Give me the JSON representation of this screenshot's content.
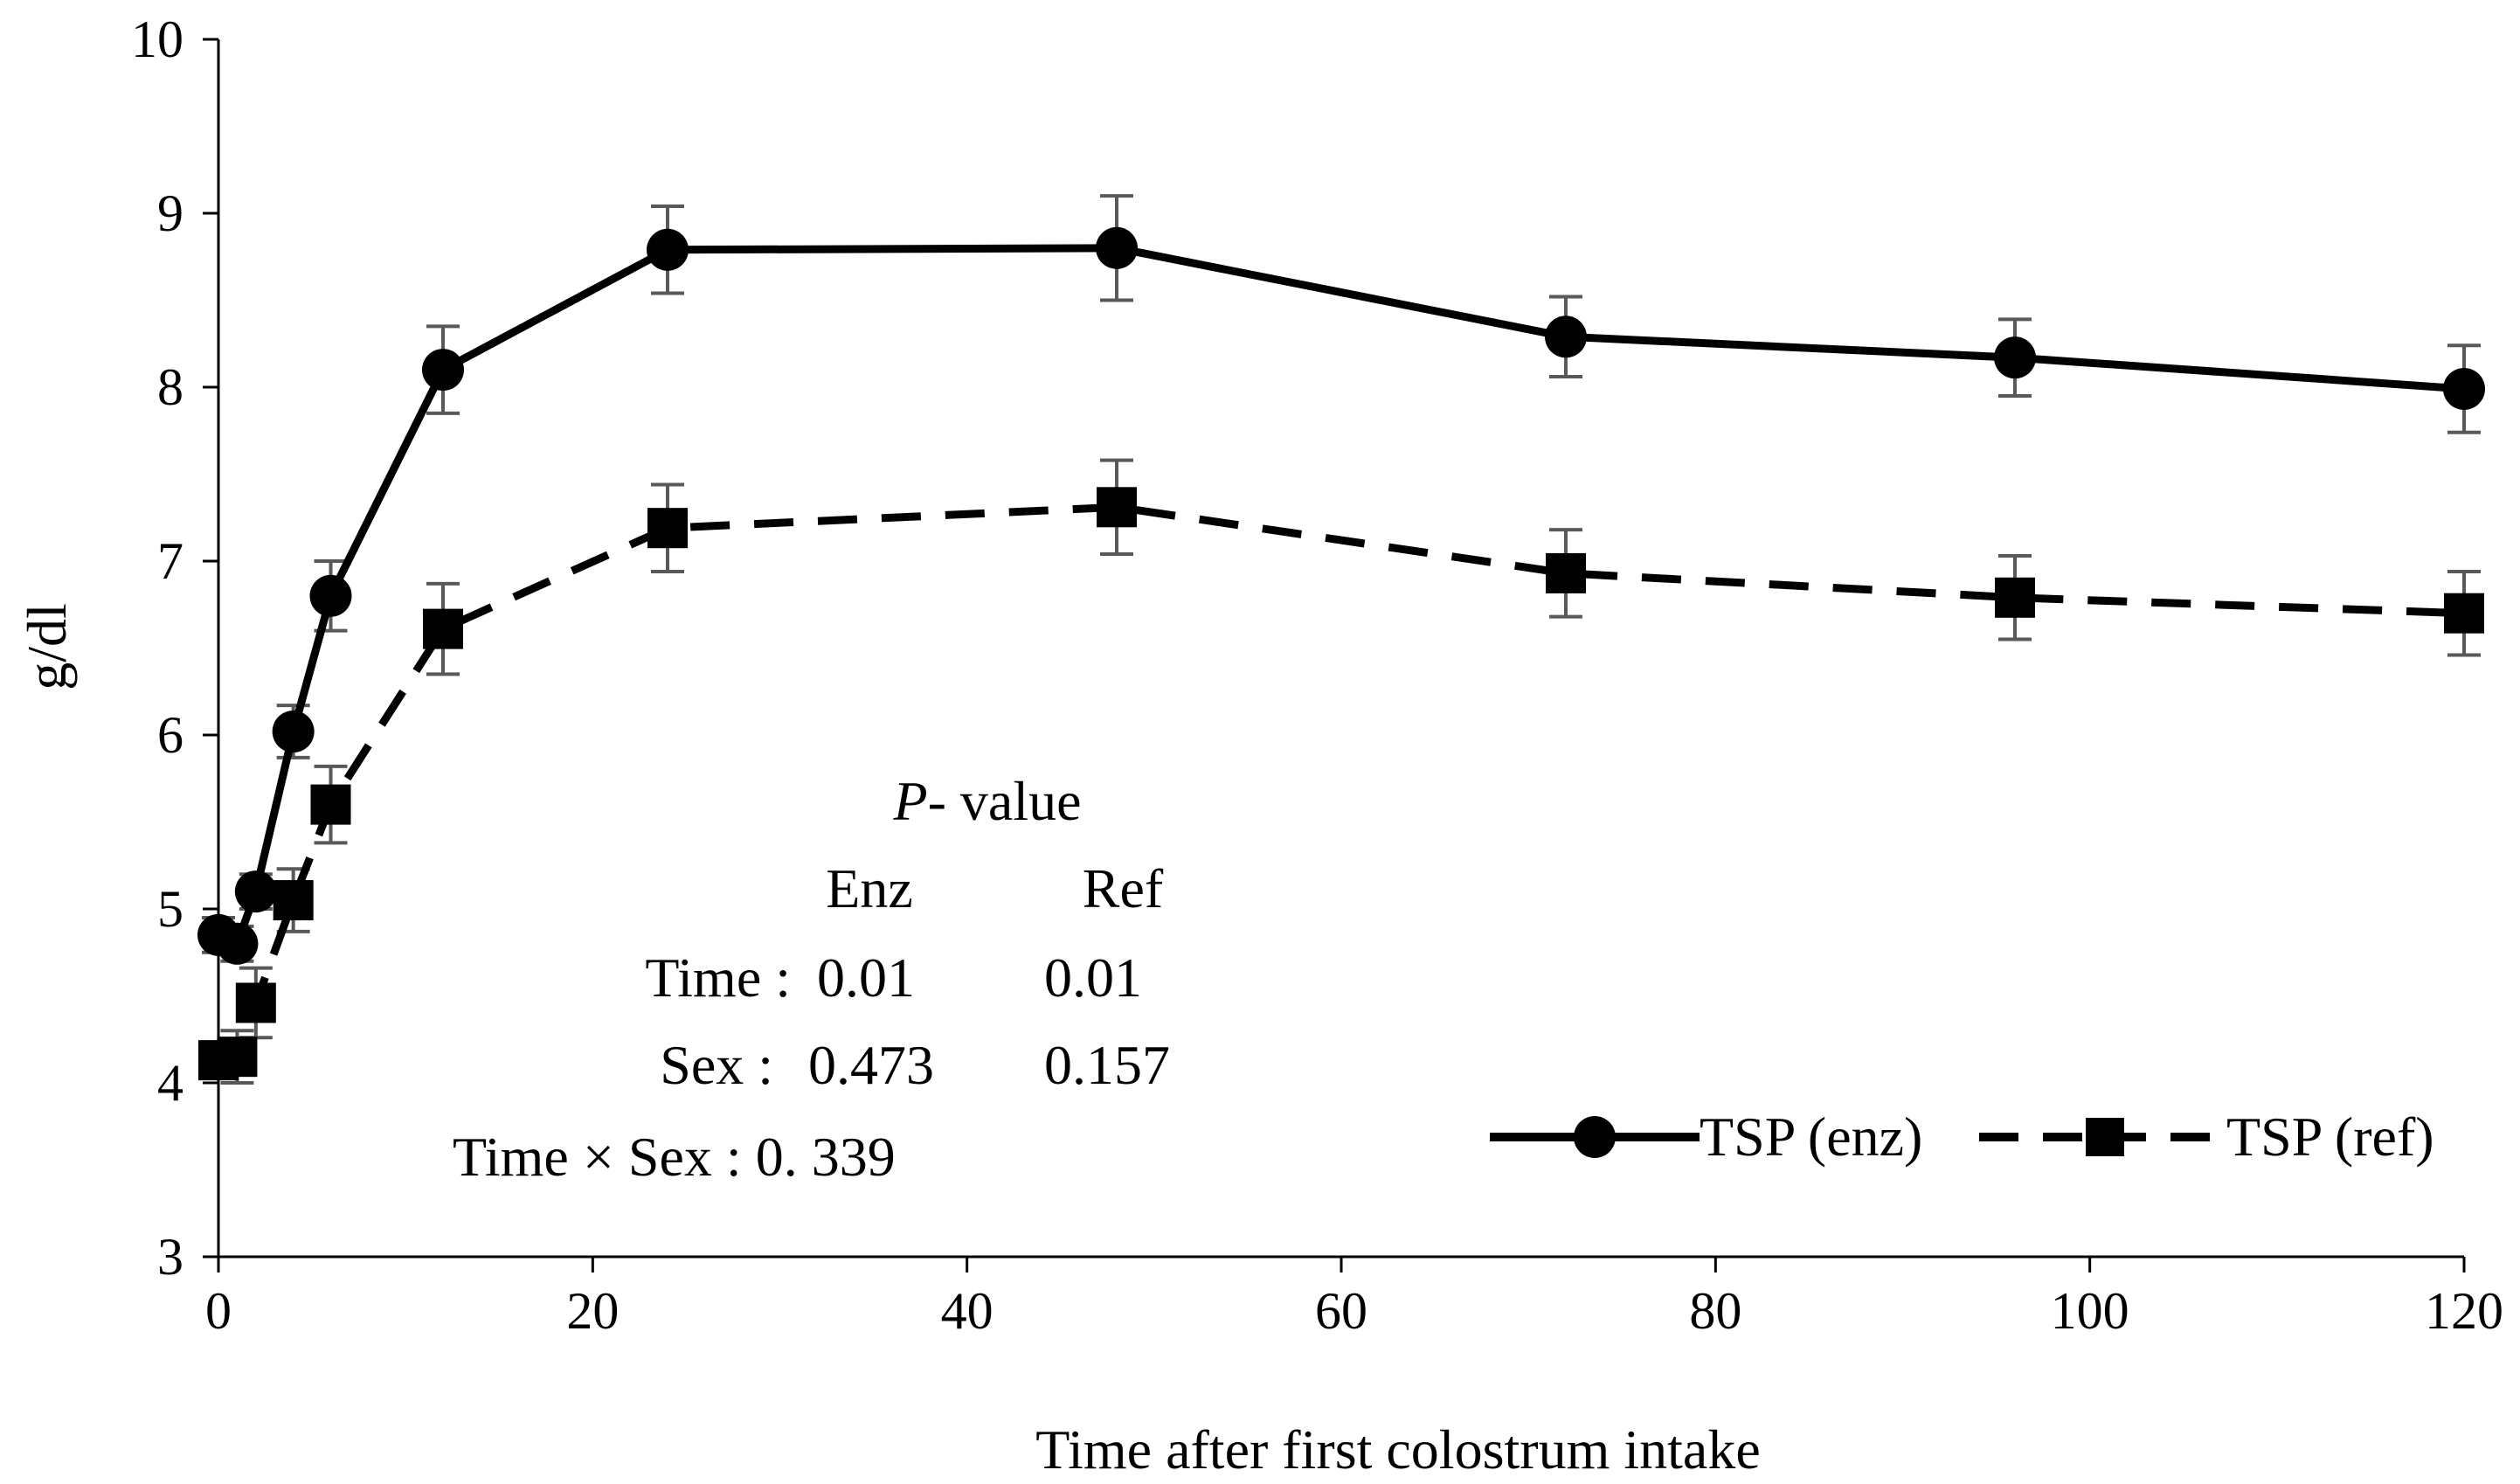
{
  "chart_data": {
    "type": "line",
    "title": "",
    "xlabel": "Time after first colostrum intake",
    "ylabel": "g/dl",
    "xlim": [
      0,
      120
    ],
    "ylim": [
      3,
      10
    ],
    "xticks": [
      0,
      20,
      40,
      60,
      80,
      100,
      120
    ],
    "yticks": [
      3,
      4,
      5,
      6,
      7,
      8,
      9,
      10
    ],
    "grid": false,
    "legend_position": "bottom-right",
    "series": [
      {
        "name": "TSP (enz)",
        "marker": "circle",
        "line": "solid",
        "x": [
          0,
          1,
          2,
          4,
          6,
          12,
          24,
          48,
          72,
          96,
          120
        ],
        "y": [
          4.85,
          4.8,
          5.1,
          6.02,
          6.8,
          8.1,
          8.79,
          8.8,
          8.29,
          8.17,
          7.99
        ],
        "err": [
          0.1,
          0.1,
          0.1,
          0.15,
          0.2,
          0.25,
          0.25,
          0.3,
          0.23,
          0.22,
          0.25
        ]
      },
      {
        "name": "TSP (ref)",
        "marker": "square",
        "line": "dashed",
        "x": [
          0,
          1,
          2,
          4,
          6,
          12,
          24,
          48,
          72,
          96,
          120
        ],
        "y": [
          4.13,
          4.15,
          4.46,
          5.05,
          5.6,
          6.61,
          7.19,
          7.31,
          6.93,
          6.79,
          6.7
        ],
        "err": [
          0.1,
          0.15,
          0.2,
          0.18,
          0.22,
          0.26,
          0.25,
          0.27,
          0.25,
          0.24,
          0.24
        ]
      }
    ],
    "annotation": {
      "title_italic": "P",
      "title_rest": "- value",
      "col_enz": "Enz",
      "col_ref": "Ref",
      "time_label": "Time :",
      "time_enz": "0.01",
      "time_ref": "0.01",
      "sex_label": "Sex :",
      "sex_enz": "0.473",
      "sex_ref": "0.157",
      "interaction": "Time × Sex :  0. 339"
    }
  }
}
